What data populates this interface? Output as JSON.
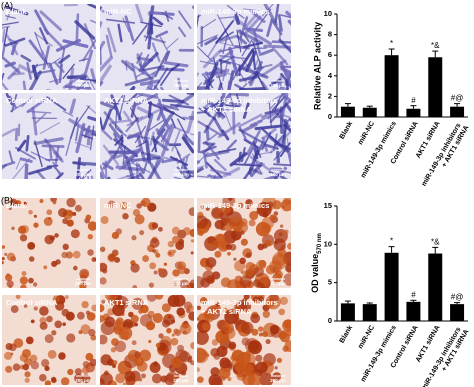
{
  "figure_labels": [
    "(A)",
    "(B)"
  ],
  "image_labels": [
    "Blank",
    "miR-NC",
    "miR-149-3p mimics",
    "Control siRNA",
    "AKT1 siRNA",
    "miR-149-3p inhibitors + AKT1 siRNA"
  ],
  "scale_bar": "200 μm",
  "chart_data": [
    {
      "type": "bar",
      "ylabel": "Relative ALP activity",
      "color": "#000000",
      "categories": [
        "Blank",
        "miR-NC",
        "miR-149-3p mimics",
        "Control siRNA",
        "AKT1 siRNA",
        "miR-149-3p inhibitors + AKT1 siRNA"
      ],
      "values": [
        1.0,
        0.9,
        6.0,
        0.8,
        5.8,
        1.0
      ],
      "errors": [
        0.3,
        0.15,
        0.6,
        0.3,
        0.6,
        0.3
      ],
      "annotations": [
        null,
        null,
        "*",
        "#",
        "*&",
        "#@"
      ],
      "ylim": [
        0,
        10
      ],
      "yticks": [
        0,
        2,
        4,
        6,
        8,
        10
      ]
    },
    {
      "type": "bar",
      "ylabel": "OD value",
      "ylabel_sub": "570 nm",
      "color": "#000000",
      "categories": [
        "Blank",
        "miR-NC",
        "miR-149-3p mimics",
        "Control siRNA",
        "AKT1 siRNA",
        "miR-149-3p inhibitors + AKT1 siRNA"
      ],
      "values": [
        2.3,
        2.2,
        8.9,
        2.5,
        8.8,
        2.2
      ],
      "errors": [
        0.3,
        0.15,
        0.8,
        0.2,
        0.8,
        0.2
      ],
      "annotations": [
        null,
        null,
        "*",
        "#",
        "*&",
        "#@"
      ],
      "ylim": [
        0,
        15
      ],
      "yticks": [
        0,
        5,
        10,
        15
      ]
    }
  ]
}
